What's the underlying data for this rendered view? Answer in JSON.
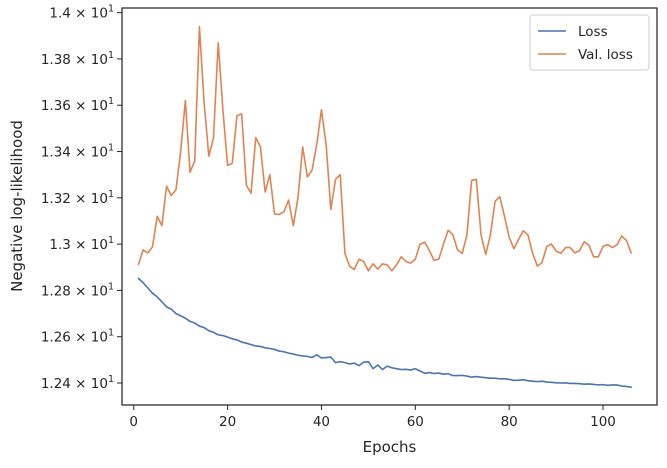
{
  "chart_data": {
    "type": "line",
    "title": "",
    "xlabel": "Epochs",
    "ylabel": "Negative log-likelihood",
    "xlim": [
      -2.5,
      111.5
    ],
    "ylim": [
      12.305,
      14.02
    ],
    "xticks": [
      0,
      20,
      40,
      60,
      80,
      100
    ],
    "yticks": [
      {
        "value": 12.4,
        "mantissa": "1.24",
        "base": "10",
        "exp": "1"
      },
      {
        "value": 12.6,
        "mantissa": "1.26",
        "base": "10",
        "exp": "1"
      },
      {
        "value": 12.8,
        "mantissa": "1.28",
        "base": "10",
        "exp": "1"
      },
      {
        "value": 13.0,
        "mantissa": "1.3",
        "base": "10",
        "exp": "1"
      },
      {
        "value": 13.2,
        "mantissa": "1.32",
        "base": "10",
        "exp": "1"
      },
      {
        "value": 13.4,
        "mantissa": "1.34",
        "base": "10",
        "exp": "1"
      },
      {
        "value": 13.6,
        "mantissa": "1.36",
        "base": "10",
        "exp": "1"
      },
      {
        "value": 13.8,
        "mantissa": "1.38",
        "base": "10",
        "exp": "1"
      },
      {
        "value": 14.0,
        "mantissa": "1.4",
        "base": "10",
        "exp": "1"
      }
    ],
    "grid": false,
    "legend_position": "top-right",
    "series": [
      {
        "name": "Loss",
        "color": "#4c72b0",
        "x_start": 1,
        "values": [
          12.852,
          12.833,
          12.811,
          12.788,
          12.772,
          12.751,
          12.729,
          12.719,
          12.7,
          12.69,
          12.68,
          12.666,
          12.659,
          12.646,
          12.639,
          12.626,
          12.619,
          12.608,
          12.605,
          12.598,
          12.591,
          12.586,
          12.577,
          12.572,
          12.566,
          12.56,
          12.558,
          12.552,
          12.549,
          12.545,
          12.538,
          12.535,
          12.529,
          12.525,
          12.52,
          12.517,
          12.515,
          12.51,
          12.522,
          12.508,
          12.51,
          12.512,
          12.488,
          12.492,
          12.488,
          12.482,
          12.486,
          12.475,
          12.49,
          12.492,
          12.462,
          12.478,
          12.458,
          12.473,
          12.466,
          12.462,
          12.458,
          12.459,
          12.456,
          12.462,
          12.452,
          12.442,
          12.445,
          12.441,
          12.443,
          12.438,
          12.44,
          12.432,
          12.432,
          12.433,
          12.43,
          12.425,
          12.428,
          12.425,
          12.423,
          12.421,
          12.421,
          12.418,
          12.418,
          12.416,
          12.411,
          12.412,
          12.414,
          12.41,
          12.408,
          12.406,
          12.408,
          12.404,
          12.403,
          12.401,
          12.4,
          12.401,
          12.398,
          12.398,
          12.397,
          12.395,
          12.396,
          12.394,
          12.392,
          12.393,
          12.39,
          12.392,
          12.391,
          12.387,
          12.385,
          12.382
        ]
      },
      {
        "name": "Val. loss",
        "color": "#dd8452",
        "x_start": 1,
        "values": [
          12.912,
          12.975,
          12.962,
          12.988,
          13.12,
          13.08,
          13.25,
          13.21,
          13.235,
          13.4,
          13.62,
          13.31,
          13.36,
          13.94,
          13.61,
          13.38,
          13.46,
          13.87,
          13.58,
          13.34,
          13.35,
          13.555,
          13.562,
          13.255,
          13.22,
          13.46,
          13.42,
          13.225,
          13.3,
          13.13,
          13.128,
          13.14,
          13.19,
          13.08,
          13.2,
          13.42,
          13.29,
          13.32,
          13.43,
          13.58,
          13.43,
          13.15,
          13.28,
          13.3,
          12.96,
          12.905,
          12.89,
          12.935,
          12.925,
          12.885,
          12.915,
          12.892,
          12.915,
          12.91,
          12.885,
          12.91,
          12.945,
          12.925,
          12.918,
          12.935,
          13.0,
          13.008,
          12.972,
          12.93,
          12.935,
          13.0,
          13.06,
          13.04,
          12.975,
          12.96,
          13.04,
          13.275,
          13.28,
          13.04,
          12.955,
          13.04,
          13.185,
          13.205,
          13.12,
          13.03,
          12.98,
          13.02,
          13.058,
          13.04,
          12.96,
          12.905,
          12.92,
          12.99,
          13.0,
          12.97,
          12.96,
          12.985,
          12.985,
          12.962,
          12.972,
          13.01,
          12.995,
          12.945,
          12.945,
          12.99,
          12.998,
          12.985,
          12.998,
          13.035,
          13.015,
          12.962
        ]
      }
    ]
  }
}
